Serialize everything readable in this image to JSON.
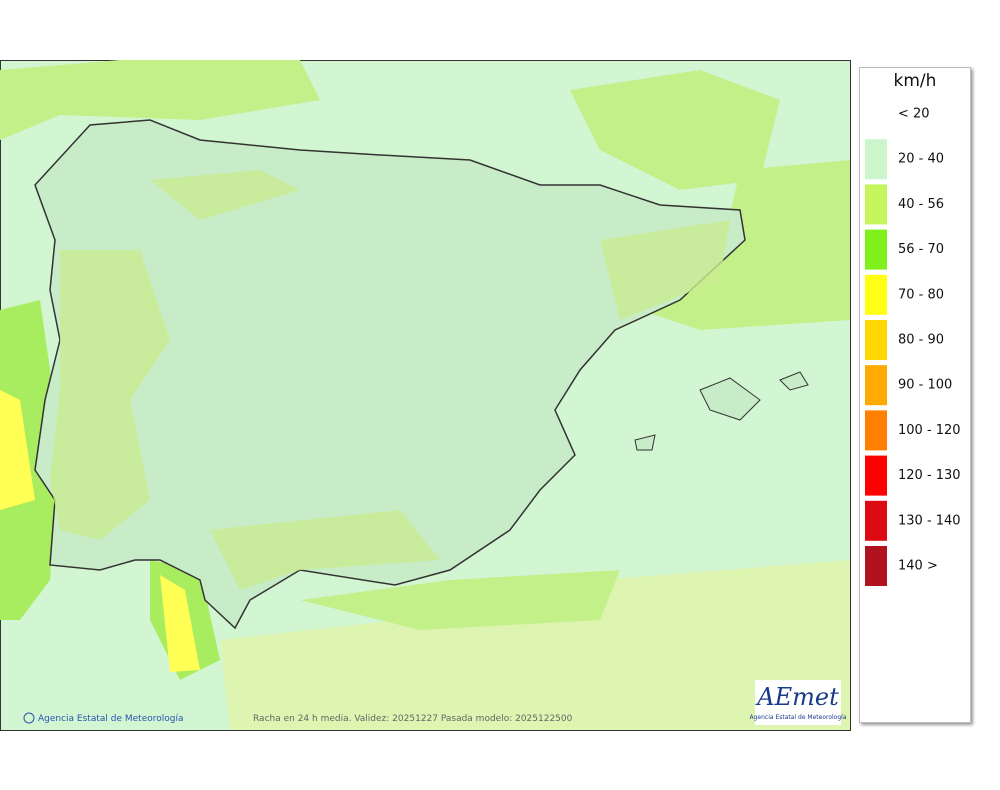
{
  "legend": {
    "title": "km/h",
    "items": [
      {
        "label": "< 20",
        "color": "#ffffff"
      },
      {
        "label": "20 - 40",
        "color": "#ccf5cc"
      },
      {
        "label": "40 - 56",
        "color": "#c4f55a"
      },
      {
        "label": "56 - 70",
        "color": "#7ff01a"
      },
      {
        "label": "70 - 80",
        "color": "#ffff14"
      },
      {
        "label": "80 - 90",
        "color": "#ffd700"
      },
      {
        "label": "90 - 100",
        "color": "#ffaa00"
      },
      {
        "label": "100 - 120",
        "color": "#ff8000"
      },
      {
        "label": "120 - 130",
        "color": "#ff0000"
      },
      {
        "label": "130 - 140",
        "color": "#dd0a12"
      },
      {
        "label": "140 >",
        "color": "#b0121e"
      }
    ]
  },
  "footer": {
    "credit": "Agencia Estatal de Meteorología",
    "caption": "Racha en 24 h media. Validez: 20251227 Pasada modelo: 2025122500"
  },
  "logo": {
    "text": "AEmet",
    "subtitle": "Agencia Estatal de Meteorología"
  }
}
